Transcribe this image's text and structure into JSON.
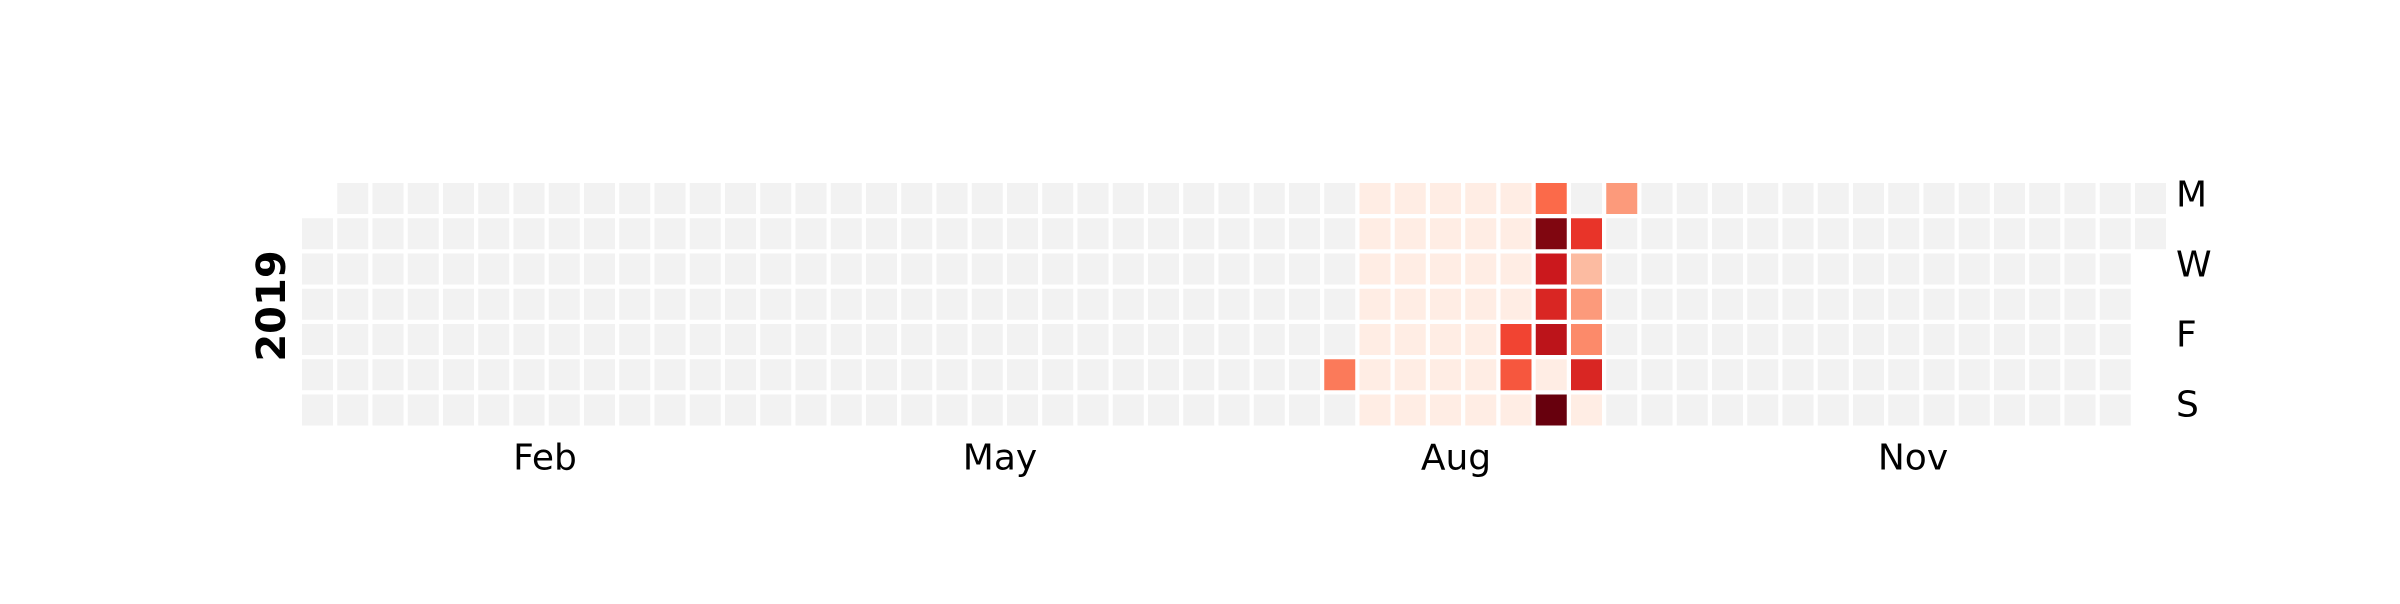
{
  "chart_data": {
    "type": "heatmap",
    "subtype": "calendar",
    "year_label": "2019",
    "colormap": "Reds",
    "empty_color": "#f2f2f2",
    "month_labels": [
      "Feb",
      "May",
      "Aug",
      "Nov"
    ],
    "weekday_labels": [
      "M",
      "W",
      "F",
      "S"
    ],
    "grid": {
      "weeks": 53,
      "days": 7,
      "first_column_starts_on": "Tuesday",
      "last_column_ends_on": "Tuesday"
    },
    "intensity_scale": [
      0,
      1
    ],
    "highlighted_cells": [
      {
        "week": 29,
        "day": "Sat",
        "value": 0.45
      },
      {
        "week": 30,
        "day": "Sun",
        "value": 0.05
      },
      {
        "week": 30,
        "day": "Mon",
        "value": 0.05
      },
      {
        "week": 30,
        "day": "Tue",
        "value": 0.05
      },
      {
        "week": 30,
        "day": "Wed",
        "value": 0.05
      },
      {
        "week": 30,
        "day": "Thu",
        "value": 0.05
      },
      {
        "week": 30,
        "day": "Fri",
        "value": 0.05
      },
      {
        "week": 30,
        "day": "Sat",
        "value": 0.05
      },
      {
        "week": 31,
        "day": "Sun",
        "value": 0.05
      },
      {
        "week": 31,
        "day": "Mon",
        "value": 0.05
      },
      {
        "week": 31,
        "day": "Tue",
        "value": 0.05
      },
      {
        "week": 31,
        "day": "Wed",
        "value": 0.05
      },
      {
        "week": 31,
        "day": "Thu",
        "value": 0.05
      },
      {
        "week": 31,
        "day": "Fri",
        "value": 0.05
      },
      {
        "week": 31,
        "day": "Sat",
        "value": 0.05
      },
      {
        "week": 32,
        "day": "Sun",
        "value": 0.05
      },
      {
        "week": 32,
        "day": "Mon",
        "value": 0.05
      },
      {
        "week": 32,
        "day": "Tue",
        "value": 0.05
      },
      {
        "week": 32,
        "day": "Wed",
        "value": 0.05
      },
      {
        "week": 32,
        "day": "Thu",
        "value": 0.05
      },
      {
        "week": 32,
        "day": "Fri",
        "value": 0.05
      },
      {
        "week": 32,
        "day": "Sat",
        "value": 0.05
      },
      {
        "week": 33,
        "day": "Sun",
        "value": 0.05
      },
      {
        "week": 33,
        "day": "Mon",
        "value": 0.05
      },
      {
        "week": 33,
        "day": "Tue",
        "value": 0.05
      },
      {
        "week": 33,
        "day": "Wed",
        "value": 0.05
      },
      {
        "week": 33,
        "day": "Thu",
        "value": 0.05
      },
      {
        "week": 33,
        "day": "Fri",
        "value": 0.05
      },
      {
        "week": 33,
        "day": "Sat",
        "value": 0.05
      },
      {
        "week": 34,
        "day": "Sun",
        "value": 0.05
      },
      {
        "week": 34,
        "day": "Mon",
        "value": 0.05
      },
      {
        "week": 34,
        "day": "Tue",
        "value": 0.05
      },
      {
        "week": 34,
        "day": "Wed",
        "value": 0.05
      },
      {
        "week": 34,
        "day": "Thu",
        "value": 0.05
      },
      {
        "week": 34,
        "day": "Fri",
        "value": 0.6
      },
      {
        "week": 34,
        "day": "Sat",
        "value": 0.55
      },
      {
        "week": 35,
        "day": "Sun",
        "value": 1.0
      },
      {
        "week": 35,
        "day": "Mon",
        "value": 0.5
      },
      {
        "week": 35,
        "day": "Tue",
        "value": 0.95
      },
      {
        "week": 35,
        "day": "Wed",
        "value": 0.75
      },
      {
        "week": 35,
        "day": "Thu",
        "value": 0.7
      },
      {
        "week": 35,
        "day": "Fri",
        "value": 0.8
      },
      {
        "week": 35,
        "day": "Sat",
        "value": 0.05
      },
      {
        "week": 36,
        "day": "Sun",
        "value": 0.05
      },
      {
        "week": 36,
        "day": "Tue",
        "value": 0.65
      },
      {
        "week": 36,
        "day": "Wed",
        "value": 0.25
      },
      {
        "week": 36,
        "day": "Thu",
        "value": 0.35
      },
      {
        "week": 36,
        "day": "Fri",
        "value": 0.4
      },
      {
        "week": 36,
        "day": "Sat",
        "value": 0.7
      },
      {
        "week": 37,
        "day": "Mon",
        "value": 0.35
      }
    ]
  }
}
